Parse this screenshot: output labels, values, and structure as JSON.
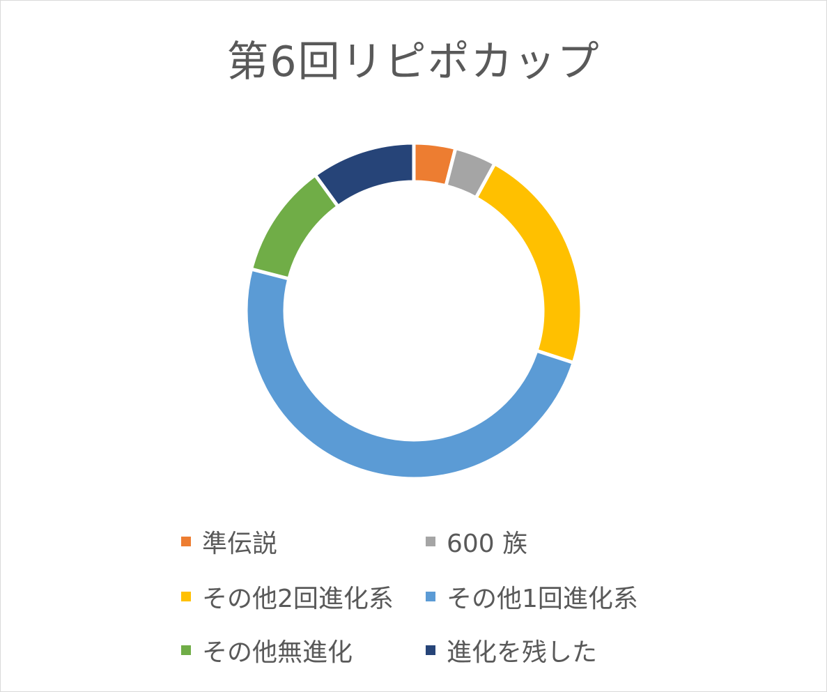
{
  "chart_data": {
    "type": "pie",
    "title": "第6回リピポカップ",
    "slices": [
      {
        "label": "準伝説",
        "value": 4,
        "color": "#ED7D31"
      },
      {
        "label": "600 族",
        "value": 4,
        "color": "#A5A5A5"
      },
      {
        "label": "その他2回進化系",
        "value": 22,
        "color": "#FFC000"
      },
      {
        "label": "その他1回進化系",
        "value": 49,
        "color": "#5B9BD5"
      },
      {
        "label": "その他無進化",
        "value": 11,
        "color": "#70AD47"
      },
      {
        "label": "進化を残した",
        "value": 10,
        "color": "#264478"
      }
    ],
    "legend_position": "bottom"
  }
}
